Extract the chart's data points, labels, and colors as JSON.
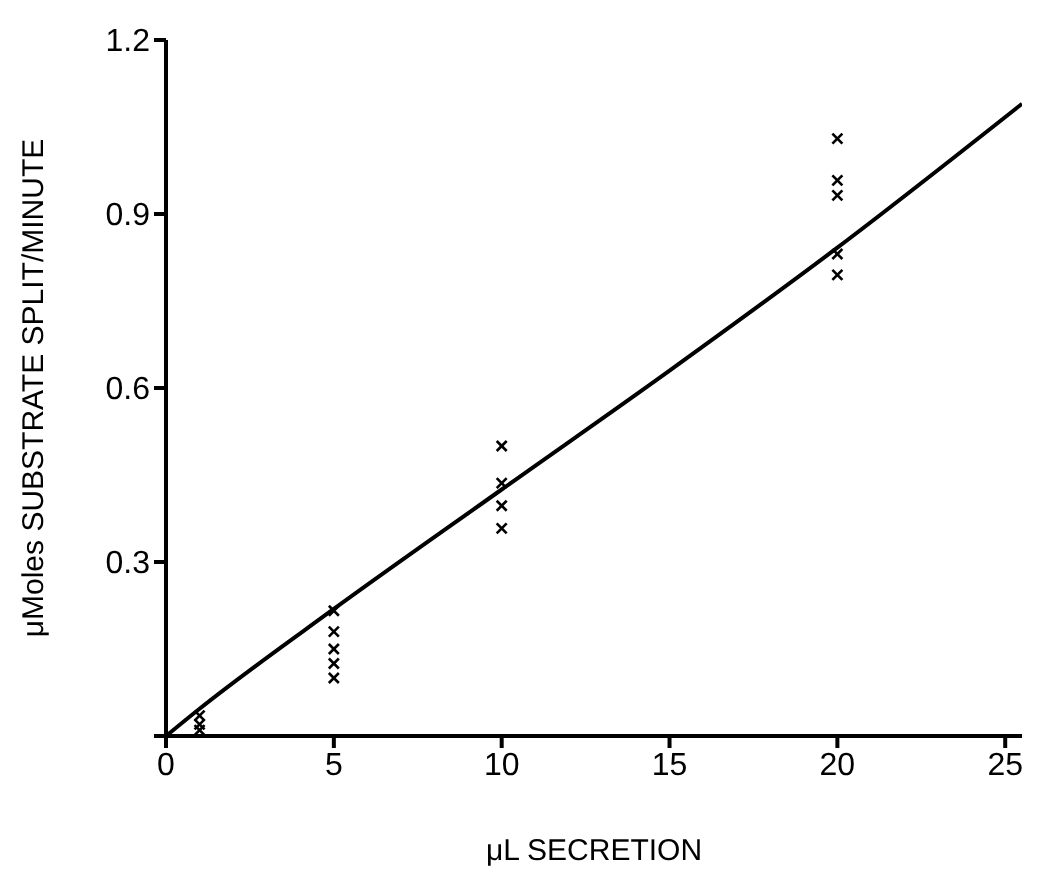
{
  "chart_data": {
    "type": "scatter",
    "xlabel": "μL SECRETION",
    "ylabel": "μMoles SUBSTRATE SPLIT/MINUTE",
    "xlim": [
      0,
      25.5
    ],
    "xticks": [
      0,
      5,
      10,
      15,
      20,
      25
    ],
    "ylim": [
      0,
      1.2
    ],
    "yticks": [
      {
        "value": 0,
        "label": null
      },
      0.3,
      0.6,
      0.9,
      1.2
    ],
    "grid": false,
    "legend": false,
    "series": [
      {
        "color": "#000000",
        "marker": "cross",
        "x": [
          1,
          1,
          1,
          5,
          5,
          5,
          5,
          5,
          10,
          10,
          10,
          10,
          20,
          20,
          20,
          20,
          20
        ],
        "values": [
          0.035,
          0.02,
          0.01,
          0.216,
          0.18,
          0.15,
          0.125,
          0.1,
          0.5,
          0.436,
          0.397,
          0.358,
          1.03,
          0.958,
          0.932,
          0.831,
          0.795
        ]
      },
      {
        "type": "line",
        "color": "#000000",
        "marker": "none",
        "line_style": "solid",
        "x": [
          0,
          1,
          5,
          10,
          15,
          20,
          25.5
        ],
        "values": [
          0,
          0.047,
          0.219,
          0.425,
          0.63,
          0.842,
          1.09
        ]
      }
    ]
  }
}
